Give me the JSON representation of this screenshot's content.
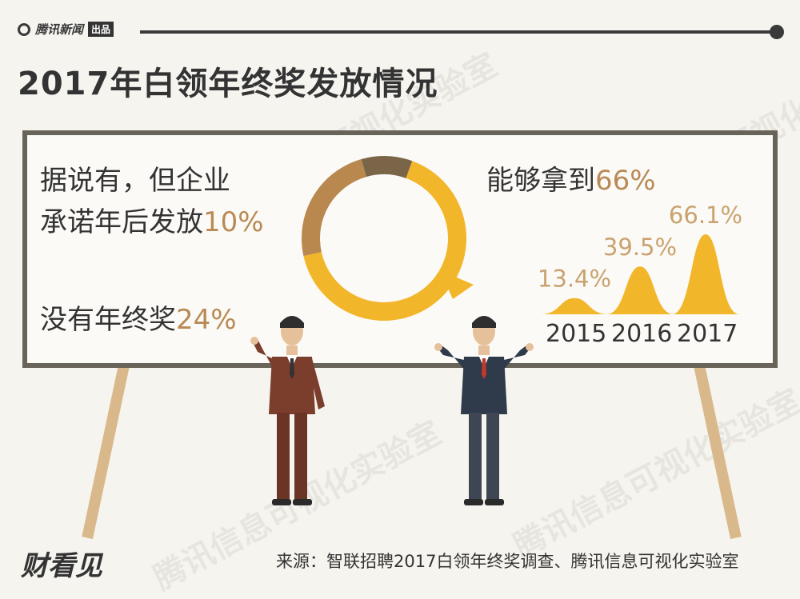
{
  "header": {
    "logo_text": "腾讯新闻",
    "logo_badge": "出品"
  },
  "title": "2017年白领年终奖发放情况",
  "watermark": "腾讯信息可视化实验室",
  "board": {
    "left_text_line1": "据说有，但企业",
    "left_text_line2_prefix": "承诺年后发放",
    "left_text_line2_pct": "10%",
    "left_text_line3_prefix": "没有年终奖",
    "left_text_line3_pct": "24%",
    "right_text_prefix": "能够拿到",
    "right_text_pct": "66%"
  },
  "chart_data": [
    {
      "type": "pie",
      "labels": [
        "能够拿到",
        "没有年终奖",
        "据说有，但企业承诺年后发放"
      ],
      "values": [
        66,
        24,
        10
      ],
      "colors": [
        "#f2b62b",
        "#b9884f",
        "#7b6548"
      ]
    },
    {
      "type": "area",
      "x": [
        "2015",
        "2016",
        "2017"
      ],
      "values": [
        13.4,
        39.5,
        66.1
      ],
      "value_labels": [
        "13.4%",
        "39.5%",
        "66.1%"
      ],
      "color": "#f2b62b"
    }
  ],
  "source": "来源：智联招聘2017白领年终奖调查、腾讯信息可视化实验室",
  "brand": "财看见"
}
